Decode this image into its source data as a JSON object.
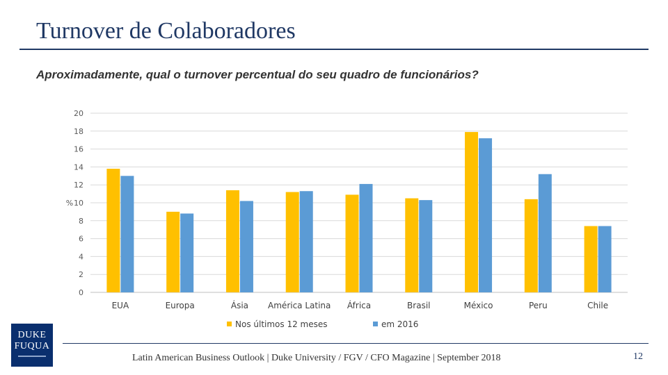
{
  "slide": {
    "title": "Turnover de Colaboradores",
    "question": "Aproximadamente, qual o turnover percentual do seu quadro de funcionários?",
    "footer": "Latin American Business Outlook | Duke University / FGV / CFO Magazine | September 2018",
    "page_number": "12",
    "logo_line1": "DUKE",
    "logo_line2": "FUQUA"
  },
  "chart_data": {
    "type": "bar",
    "title": "",
    "xlabel": "",
    "ylabel": "%",
    "ylim": [
      0,
      20
    ],
    "yticks": [
      0,
      2,
      4,
      6,
      8,
      10,
      12,
      14,
      16,
      18,
      20
    ],
    "grid": true,
    "legend_position": "bottom",
    "categories": [
      "EUA",
      "Europa",
      "Ásia",
      "América Latina",
      "África",
      "Brasil",
      "México",
      "Peru",
      "Chile"
    ],
    "series": [
      {
        "name": "Nos últimos 12 meses",
        "color": "#ffc000",
        "values": [
          13.8,
          9.0,
          11.4,
          11.2,
          10.9,
          10.5,
          17.9,
          10.4,
          7.4
        ]
      },
      {
        "name": "em 2016",
        "color": "#5b9bd5",
        "values": [
          13.0,
          8.8,
          10.2,
          11.3,
          12.1,
          10.3,
          17.2,
          13.2,
          7.4
        ]
      }
    ]
  }
}
